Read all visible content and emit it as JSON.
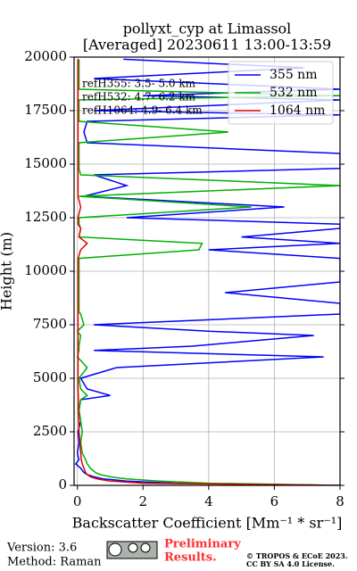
{
  "chart_data": {
    "type": "line",
    "title": [
      "pollyxt_cyp at Limassol",
      "[Averaged] 20230611 13:00-13:59"
    ],
    "xlabel": "Backscatter Coefficient [Mm⁻¹ * sr⁻¹]",
    "ylabel": "Height (m)",
    "xlim": [
      -0.1,
      8
    ],
    "xticks": [
      0,
      2,
      4,
      6,
      8
    ],
    "ylim": [
      0,
      20000
    ],
    "yticks": [
      0,
      2500,
      5000,
      7500,
      10000,
      12500,
      15000,
      17500,
      20000
    ],
    "grid": true,
    "legend": "upper right",
    "heights": [
      0,
      100,
      200,
      300,
      400,
      500,
      600,
      800,
      1000,
      1200,
      1500,
      2000,
      2500,
      3000,
      3500,
      4000,
      4200,
      4500,
      5000,
      5500,
      6000,
      6300,
      6500,
      7000,
      7200,
      7500,
      8000,
      8100,
      8500,
      9000,
      9500,
      10000,
      10300,
      10600,
      11000,
      11300,
      11600,
      12000,
      12200,
      12500,
      13000,
      13500,
      14000,
      14500,
      14800,
      15200,
      15500,
      16000,
      16500,
      17000,
      17300,
      17500,
      18000,
      18200,
      18500,
      19000,
      19500,
      19900
    ],
    "series": [
      {
        "name": "355 nm",
        "color": "#0000ff",
        "values": [
          8,
          3,
          1.5,
          0.8,
          0.5,
          0.3,
          0.2,
          0.1,
          -0.05,
          0.05,
          0,
          0.05,
          0.02,
          0.1,
          0.05,
          0.1,
          1,
          0.3,
          0.1,
          1.2,
          7.5,
          0.5,
          3.5,
          7.2,
          4,
          0.5,
          8,
          8,
          8,
          4.5,
          8,
          8,
          8,
          8,
          4,
          8,
          5,
          8,
          8,
          1.5,
          6.3,
          0.2,
          1.5,
          0.5,
          8,
          8,
          8,
          0.3,
          0.2,
          0.3,
          8,
          0.5,
          8,
          2,
          8,
          0.5,
          6.9,
          1.4
        ]
      },
      {
        "name": "532 nm",
        "color": "#00b000",
        "values": [
          8,
          4,
          2.5,
          1.5,
          1,
          0.7,
          0.55,
          0.4,
          0.3,
          0.25,
          0.15,
          0.1,
          0.15,
          0.1,
          0.05,
          0.1,
          0.3,
          0.1,
          0.05,
          0.3,
          0,
          0.05,
          0.05,
          0.1,
          0,
          0.2,
          0.1,
          0.05,
          0.05,
          0.05,
          0.05,
          0.05,
          0.05,
          0.05,
          3.7,
          3.8,
          0.05,
          0.1,
          0.05,
          0.05,
          5.3,
          0.05,
          8,
          0.1,
          0.05,
          0.05,
          0.05,
          0.05,
          4.6,
          0.05,
          0.05,
          0.05,
          0.05,
          8,
          0.05,
          0.05,
          0.05,
          0.05
        ]
      },
      {
        "name": "1064 nm",
        "color": "#e00000",
        "values": [
          8,
          2,
          1,
          0.6,
          0.4,
          0.3,
          0.25,
          0.2,
          0.15,
          0.12,
          0.1,
          0.08,
          0.05,
          0.04,
          0.03,
          0.03,
          0.03,
          0.02,
          0.02,
          0.02,
          0.02,
          0.02,
          0.02,
          0.02,
          0.02,
          0.02,
          0.02,
          0.02,
          0.02,
          0.02,
          0.02,
          0.02,
          0.02,
          0.02,
          0.1,
          0.3,
          0.05,
          0.1,
          0.02,
          0.02,
          0.1,
          0.02,
          0.02,
          0.02,
          0.02,
          0.02,
          0.02,
          0.02,
          0.02,
          0.02,
          0.02,
          0.02,
          0.02,
          0.02,
          0.02,
          0.02,
          0.02,
          0.02
        ]
      }
    ],
    "annotations": [
      "refH355:  3.5- 5.0 km",
      "refH532:  4.7- 6.2 km",
      "refH1064:  4.9- 6.4 km"
    ]
  },
  "footer": {
    "version": "Version: 3.6",
    "method": "Method: Raman",
    "status": [
      "Preliminary",
      "Results."
    ],
    "copyright": [
      "© TROPOS & ECoE 2023.",
      "CC BY SA 4.0 License."
    ]
  }
}
